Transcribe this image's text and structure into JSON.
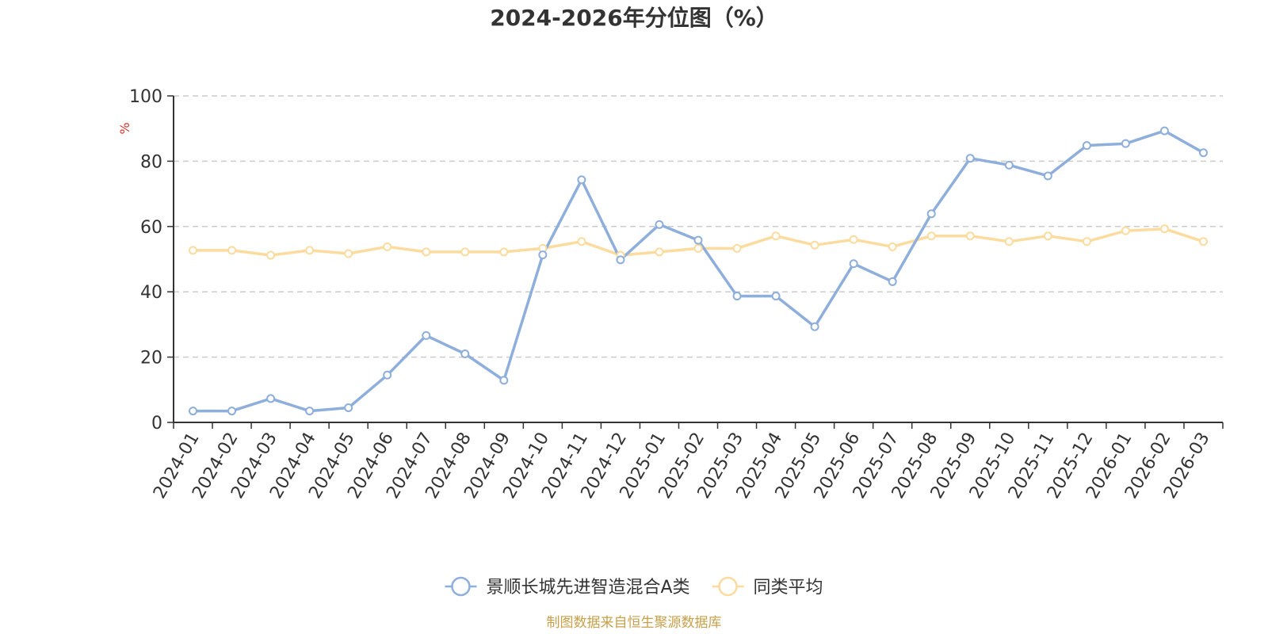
{
  "chart_data": {
    "type": "line",
    "title": "2024-2026年分位图（%）",
    "ylabel": "%",
    "xlabel": "",
    "ylim": [
      0,
      100
    ],
    "yticks": [
      0,
      20,
      40,
      60,
      80,
      100
    ],
    "grid": true,
    "legend_position": "bottom-center",
    "categories": [
      "2024-01",
      "2024-02",
      "2024-03",
      "2024-04",
      "2024-05",
      "2024-06",
      "2024-07",
      "2024-08",
      "2024-09",
      "2024-10",
      "2024-11",
      "2024-12",
      "2025-01",
      "2025-02",
      "2025-03",
      "2025-04",
      "2025-05",
      "2025-06",
      "2025-07",
      "2025-08",
      "2025-09",
      "2025-10",
      "2025-11",
      "2025-12",
      "2026-01",
      "2026-02",
      "2026-03"
    ],
    "series": [
      {
        "name": "景顺长城先进智造混合A类",
        "color": "#8eaedb",
        "values": [
          3.5,
          3.5,
          7.3,
          3.5,
          4.5,
          14.5,
          26.6,
          21.0,
          12.9,
          51.3,
          74.3,
          49.8,
          60.6,
          55.8,
          38.7,
          38.7,
          29.3,
          48.6,
          43.1,
          63.9,
          80.9,
          78.8,
          75.5,
          84.8,
          85.4,
          89.3,
          82.6
        ]
      },
      {
        "name": "同类平均",
        "color": "#fbdb9e",
        "values": [
          52.7,
          52.7,
          51.2,
          52.7,
          51.7,
          53.8,
          52.2,
          52.2,
          52.2,
          53.3,
          55.4,
          51.2,
          52.2,
          53.3,
          53.3,
          57.1,
          54.3,
          56.0,
          53.8,
          57.1,
          57.1,
          55.4,
          57.1,
          55.4,
          58.7,
          59.3,
          55.4
        ]
      }
    ]
  },
  "source_note": "制图数据来自恒生聚源数据库",
  "colors": {
    "axis": "#333333",
    "grid": "#cccccc",
    "unit_label": "#e0302b",
    "source_note": "#c8a04a"
  }
}
